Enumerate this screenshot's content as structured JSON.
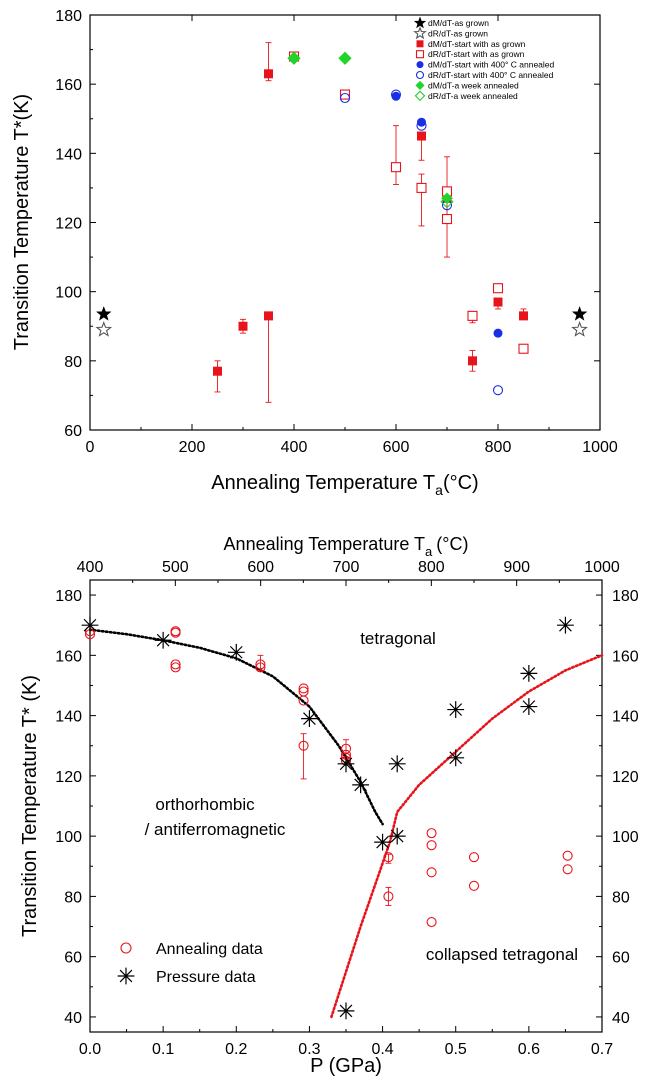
{
  "chart_data": [
    {
      "type": "scatter",
      "xlabel": "Annealing Temperature T",
      "xlabel_sub": "a",
      "xlabel_unit": "(°C)",
      "ylabel": "Transition Temperature T*(K)",
      "xlim": [
        0,
        1000
      ],
      "ylim": [
        60,
        180
      ],
      "xticks": [
        0,
        200,
        400,
        600,
        800,
        1000
      ],
      "yticks": [
        60,
        80,
        100,
        120,
        140,
        160,
        180
      ],
      "legend_position": "top-right",
      "series": [
        {
          "name": "dM/dT-as grown",
          "marker": "star-filled",
          "color": "#000000",
          "points": [
            {
              "x": 27,
              "y": 93.5
            },
            {
              "x": 960,
              "y": 93.5
            }
          ]
        },
        {
          "name": "dR/dT-as grown",
          "marker": "star-open",
          "color": "#555555",
          "points": [
            {
              "x": 27,
              "y": 89
            },
            {
              "x": 960,
              "y": 89
            }
          ]
        },
        {
          "name": "dM/dT-start with as grown",
          "marker": "square-filled",
          "color": "#e8141c",
          "points": [
            {
              "x": 250,
              "y": 77,
              "err_low": 71,
              "err_high": 80
            },
            {
              "x": 300,
              "y": 90,
              "err_low": 88,
              "err_high": 92
            },
            {
              "x": 350,
              "y": 93,
              "err_low": 68,
              "err_high": 93
            },
            {
              "x": 350,
              "y": 163,
              "err_low": 161,
              "err_high": 172
            },
            {
              "x": 650,
              "y": 145,
              "err_low": 138,
              "err_high": 146
            },
            {
              "x": 700,
              "y": 127
            },
            {
              "x": 750,
              "y": 80,
              "err_low": 77,
              "err_high": 83
            },
            {
              "x": 800,
              "y": 97,
              "err_low": 95,
              "err_high": 98
            },
            {
              "x": 850,
              "y": 93,
              "err_low": 92,
              "err_high": 95
            }
          ]
        },
        {
          "name": "dR/dT-start with as grown",
          "marker": "square-open",
          "color": "#e8141c",
          "points": [
            {
              "x": 400,
              "y": 168
            },
            {
              "x": 500,
              "y": 157,
              "err_low": 156,
              "err_high": 158
            },
            {
              "x": 600,
              "y": 136,
              "err_low": 131,
              "err_high": 148
            },
            {
              "x": 650,
              "y": 130,
              "err_low": 119,
              "err_high": 134
            },
            {
              "x": 700,
              "y": 129,
              "err_low": 110,
              "err_high": 139
            },
            {
              "x": 700,
              "y": 121
            },
            {
              "x": 750,
              "y": 93,
              "err_low": 91,
              "err_high": 94
            },
            {
              "x": 800,
              "y": 101,
              "err_low": 100,
              "err_high": 102
            },
            {
              "x": 850,
              "y": 83.5
            }
          ]
        },
        {
          "name": "dM/dT-start with 400° C annealed",
          "marker": "circle-filled",
          "color": "#1a2ee6",
          "points": [
            {
              "x": 600,
              "y": 156.5
            },
            {
              "x": 650,
              "y": 149
            },
            {
              "x": 800,
              "y": 88
            }
          ]
        },
        {
          "name": "dR/dT-start with 400° C annealed",
          "marker": "circle-open",
          "color": "#1a2ee6",
          "points": [
            {
              "x": 500,
              "y": 156
            },
            {
              "x": 600,
              "y": 157
            },
            {
              "x": 650,
              "y": 148
            },
            {
              "x": 700,
              "y": 125
            },
            {
              "x": 800,
              "y": 71.5
            }
          ]
        },
        {
          "name": "dM/dT-a week annealed",
          "marker": "diamond-filled",
          "color": "#22d32a",
          "points": [
            {
              "x": 400,
              "y": 167.5
            },
            {
              "x": 500,
              "y": 167.5
            },
            {
              "x": 700,
              "y": 127
            }
          ]
        },
        {
          "name": "dR/dT-a week annealed",
          "marker": "diamond-open",
          "color": "#22d32a",
          "points": [
            {
              "x": 400,
              "y": 167.5
            },
            {
              "x": 500,
              "y": 167.5
            },
            {
              "x": 700,
              "y": 126
            }
          ]
        }
      ]
    },
    {
      "type": "scatter",
      "xlabel": "P (GPa)",
      "x2label": "Annealing Temperature T",
      "x2label_sub": "a",
      "x2label_unit": "(°C)",
      "ylabel": "Transition Temperature T* (K)",
      "xlim": [
        0,
        0.7
      ],
      "x2lim": [
        400,
        1000
      ],
      "ylim": [
        35,
        185
      ],
      "xticks": [
        "0.0",
        "0.1",
        "0.2",
        "0.3",
        "0.4",
        "0.5",
        "0.6",
        "0.7"
      ],
      "x2ticks": [
        400,
        500,
        600,
        700,
        800,
        900,
        1000
      ],
      "yticks": [
        40,
        60,
        80,
        100,
        120,
        140,
        160,
        180
      ],
      "legend_position": "bottom-left",
      "annotations": [
        "tetragonal",
        "orthorhombic",
        "/ antiferromagnetic",
        "collapsed tetragonal"
      ],
      "series": [
        {
          "name": "Annealing data",
          "marker": "circle-open",
          "color": "#e8141c",
          "points": [
            {
              "x": 0.0,
              "y": 167
            },
            {
              "x": 0.0,
              "y": 168
            },
            {
              "x": 0.117,
              "y": 157
            },
            {
              "x": 0.117,
              "y": 156
            },
            {
              "x": 0.117,
              "y": 167.5
            },
            {
              "x": 0.117,
              "y": 168
            },
            {
              "x": 0.233,
              "y": 157,
              "err_low": 155,
              "err_high": 160
            },
            {
              "x": 0.233,
              "y": 156
            },
            {
              "x": 0.292,
              "y": 149
            },
            {
              "x": 0.292,
              "y": 148
            },
            {
              "x": 0.292,
              "y": 145
            },
            {
              "x": 0.292,
              "y": 130,
              "err_low": 119,
              "err_high": 134
            },
            {
              "x": 0.35,
              "y": 129,
              "err_low": 126,
              "err_high": 132
            },
            {
              "x": 0.35,
              "y": 127
            },
            {
              "x": 0.35,
              "y": 126
            },
            {
              "x": 0.35,
              "y": 125
            },
            {
              "x": 0.408,
              "y": 93,
              "err_low": 91,
              "err_high": 94
            },
            {
              "x": 0.408,
              "y": 80,
              "err_low": 77,
              "err_high": 83
            },
            {
              "x": 0.467,
              "y": 101
            },
            {
              "x": 0.467,
              "y": 97
            },
            {
              "x": 0.467,
              "y": 88
            },
            {
              "x": 0.467,
              "y": 71.5
            },
            {
              "x": 0.525,
              "y": 93
            },
            {
              "x": 0.525,
              "y": 83.5
            },
            {
              "x": 0.653,
              "y": 93.5
            },
            {
              "x": 0.653,
              "y": 89
            }
          ]
        },
        {
          "name": "Pressure data",
          "marker": "asterisk",
          "color": "#000000",
          "points": [
            {
              "x": 0.0,
              "y": 170
            },
            {
              "x": 0.1,
              "y": 165
            },
            {
              "x": 0.2,
              "y": 161
            },
            {
              "x": 0.3,
              "y": 139
            },
            {
              "x": 0.35,
              "y": 124
            },
            {
              "x": 0.37,
              "y": 117
            },
            {
              "x": 0.4,
              "y": 98
            },
            {
              "x": 0.42,
              "y": 100
            },
            {
              "x": 0.42,
              "y": 124
            },
            {
              "x": 0.35,
              "y": 42
            },
            {
              "x": 0.5,
              "y": 126
            },
            {
              "x": 0.5,
              "y": 142
            },
            {
              "x": 0.6,
              "y": 154
            },
            {
              "x": 0.6,
              "y": 143
            },
            {
              "x": 0.65,
              "y": 170
            }
          ]
        }
      ],
      "guide_lines": [
        {
          "style": "dotted",
          "color": "#000000",
          "points": [
            {
              "x": 0.0,
              "y": 168.5
            },
            {
              "x": 0.05,
              "y": 167
            },
            {
              "x": 0.1,
              "y": 165
            },
            {
              "x": 0.15,
              "y": 162.5
            },
            {
              "x": 0.2,
              "y": 159
            },
            {
              "x": 0.25,
              "y": 153
            },
            {
              "x": 0.3,
              "y": 143
            },
            {
              "x": 0.34,
              "y": 130
            },
            {
              "x": 0.37,
              "y": 118
            },
            {
              "x": 0.39,
              "y": 108
            },
            {
              "x": 0.4,
              "y": 104
            }
          ]
        },
        {
          "style": "dotted",
          "color": "#e8141c",
          "points": [
            {
              "x": 0.33,
              "y": 40
            },
            {
              "x": 0.35,
              "y": 55
            },
            {
              "x": 0.37,
              "y": 70
            },
            {
              "x": 0.39,
              "y": 84
            },
            {
              "x": 0.41,
              "y": 98
            },
            {
              "x": 0.42,
              "y": 108
            },
            {
              "x": 0.45,
              "y": 117
            },
            {
              "x": 0.5,
              "y": 128
            },
            {
              "x": 0.55,
              "y": 139
            },
            {
              "x": 0.6,
              "y": 148
            },
            {
              "x": 0.65,
              "y": 155
            },
            {
              "x": 0.7,
              "y": 160
            }
          ]
        }
      ]
    }
  ]
}
